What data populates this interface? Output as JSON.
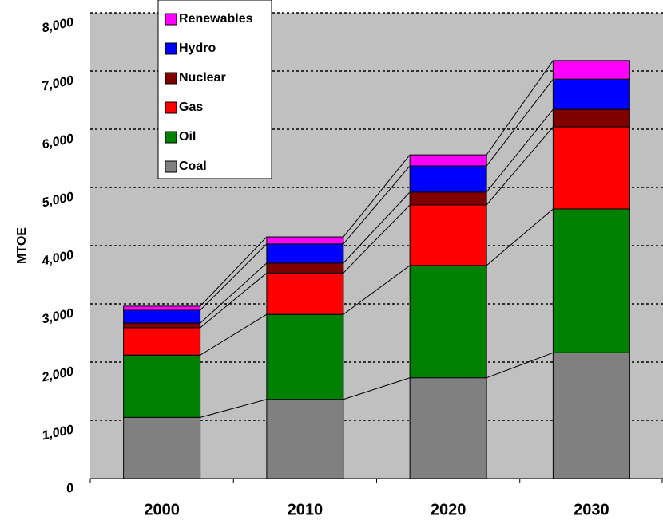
{
  "chart_data": {
    "type": "stacked-bar",
    "y_label": "MTOE",
    "categories": [
      "2000",
      "2010",
      "2020",
      "2030"
    ],
    "series": [
      {
        "name": "Coal",
        "color": "#808080",
        "values": [
          1050,
          1360,
          1730,
          2160
        ]
      },
      {
        "name": "Oil",
        "color": "#008000",
        "values": [
          1070,
          1460,
          1930,
          2470
        ]
      },
      {
        "name": "Gas",
        "color": "#ff0000",
        "values": [
          470,
          710,
          1040,
          1410
        ]
      },
      {
        "name": "Nuclear",
        "color": "#800000",
        "values": [
          80,
          170,
          220,
          300
        ]
      },
      {
        "name": "Hydro",
        "color": "#0000ff",
        "values": [
          220,
          330,
          450,
          520
        ]
      },
      {
        "name": "Renewables",
        "color": "#ff00ff",
        "values": [
          70,
          120,
          190,
          320
        ]
      }
    ],
    "ylim": [
      0,
      8000
    ],
    "yticks": [
      0,
      {
        "value": 1000,
        "label": "1,000"
      },
      {
        "value": 2000,
        "label": "2,000"
      },
      {
        "value": 3000,
        "label": "3,000"
      },
      {
        "value": 4000,
        "label": "4,000"
      },
      {
        "value": 5000,
        "label": "5,000"
      },
      {
        "value": 6000,
        "label": "6,000"
      },
      {
        "value": 7000,
        "label": "7,000"
      },
      {
        "value": 8000,
        "label": "8,000"
      }
    ],
    "grid": true,
    "connector_lines": true
  }
}
